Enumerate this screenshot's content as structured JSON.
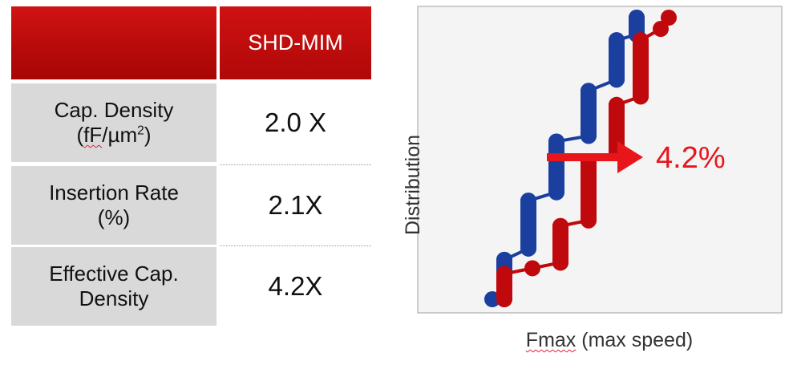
{
  "table": {
    "header": {
      "column": "SHD-MIM"
    },
    "rows": [
      {
        "label_line1": "Cap. Density",
        "label_line2_prefix": "(",
        "label_line2_unit": "fF",
        "label_line2_mid": "/µm",
        "label_line2_sup": "2",
        "label_line2_suffix": ")",
        "value": "2.0 X"
      },
      {
        "label_line1": "Insertion Rate",
        "label_line2": "(%)",
        "value": "2.1X"
      },
      {
        "label_line1": "Effective Cap.",
        "label_line2": "Density",
        "value": "4.2X"
      }
    ]
  },
  "chart_data": {
    "type": "line",
    "xlabel_main": "Fmax",
    "xlabel_rest": " (max speed)",
    "ylabel": "Distribution",
    "annotation": "4.2%",
    "ylim": [
      0,
      10
    ],
    "series": [
      {
        "color": "#1a3f9e",
        "points": [
          [
            0.0,
            0
          ],
          [
            0.3,
            0.4
          ],
          [
            0.3,
            1.4
          ],
          [
            0.9,
            1.8
          ],
          [
            0.9,
            3.5
          ],
          [
            1.6,
            3.8
          ],
          [
            1.6,
            5.6
          ],
          [
            2.4,
            5.8
          ],
          [
            2.4,
            7.4
          ],
          [
            3.1,
            7.8
          ],
          [
            3.1,
            9.2
          ],
          [
            3.6,
            9.4
          ],
          [
            3.6,
            10.0
          ]
        ]
      },
      {
        "color": "#c0090c",
        "points": [
          [
            0.3,
            0
          ],
          [
            0.3,
            0.9
          ],
          [
            1.0,
            1.1
          ],
          [
            1.7,
            1.3
          ],
          [
            1.7,
            2.6
          ],
          [
            2.4,
            2.8
          ],
          [
            2.4,
            4.9
          ],
          [
            3.1,
            5.2
          ],
          [
            3.1,
            6.9
          ],
          [
            3.7,
            7.2
          ],
          [
            3.7,
            9.2
          ],
          [
            4.2,
            9.6
          ],
          [
            4.4,
            10.0
          ]
        ]
      }
    ],
    "colors": {
      "arrow": "#e8161b",
      "annotation": "#e8161b",
      "plot_border": "#bdbdbd",
      "plot_bg": "#f4f4f4"
    }
  }
}
